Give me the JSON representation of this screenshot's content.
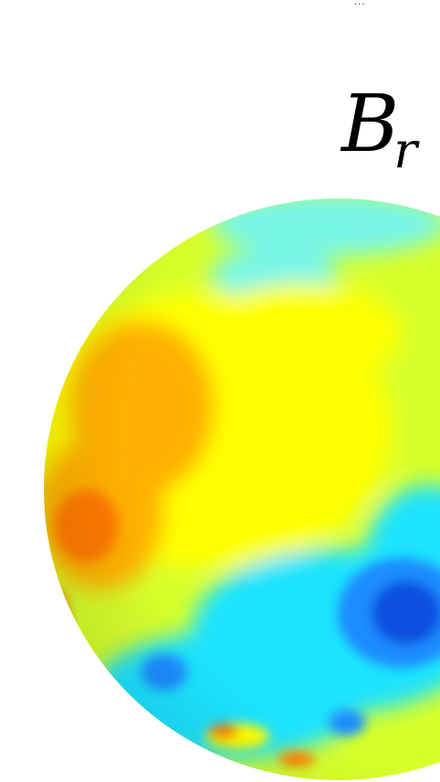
{
  "figure": {
    "top_fragment": "...",
    "title_main": "B",
    "title_sub": "r"
  },
  "colors": {
    "background": "#ffffff",
    "dark_blue": "#0a4fe0",
    "blue": "#1a8cff",
    "cyan": "#1de3ff",
    "light_cyan": "#78f6e8",
    "yellow_green": "#d8ff2a",
    "yellow": "#ffff00",
    "orange": "#ffb000",
    "dark_orange": "#ff7a00",
    "red": "#ff2a00"
  }
}
